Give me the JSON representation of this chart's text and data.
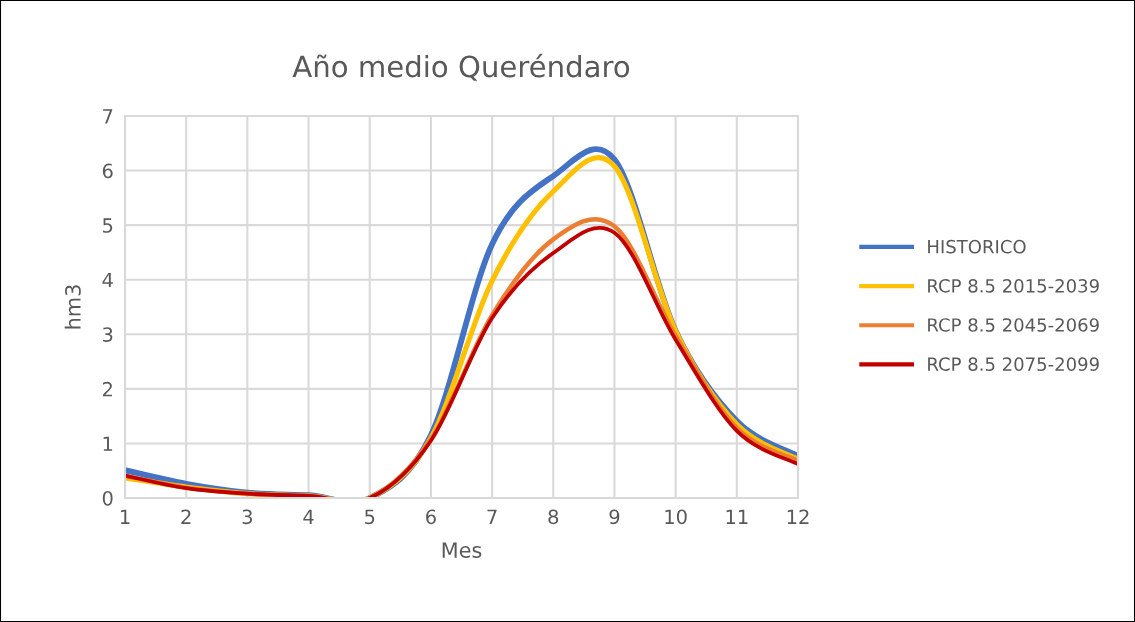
{
  "chart_data": {
    "type": "line",
    "title": "Año medio Queréndaro",
    "xlabel": "Mes",
    "ylabel": "hm3",
    "x": [
      1,
      2,
      3,
      4,
      5,
      6,
      7,
      8,
      9,
      10,
      11,
      12
    ],
    "xlim": [
      1,
      12
    ],
    "xticks": [
      1,
      2,
      3,
      4,
      5,
      6,
      7,
      8,
      9,
      10,
      11,
      12
    ],
    "ylim": [
      0,
      7
    ],
    "yticks": [
      0,
      1,
      2,
      3,
      4,
      5,
      6,
      7
    ],
    "grid": true,
    "legend": "right",
    "marker": "none",
    "line_style": "solid",
    "series": [
      {
        "name": "HISTORICO",
        "color": "#4472c4",
        "values": [
          0.51,
          0.26,
          0.1,
          0.05,
          0.0,
          1.15,
          4.65,
          5.9,
          6.2,
          3.06,
          1.41,
          0.77
        ]
      },
      {
        "name": "RCP 8.5 2015-2039",
        "color": "#ffc000",
        "values": [
          0.37,
          0.2,
          0.08,
          0.04,
          0.0,
          1.1,
          3.98,
          5.62,
          6.08,
          3.06,
          1.35,
          0.71
        ]
      },
      {
        "name": "RCP 8.5 2045-2069",
        "color": "#ed7d31",
        "values": [
          0.41,
          0.19,
          0.08,
          0.04,
          0.0,
          1.07,
          3.35,
          4.74,
          4.98,
          2.97,
          1.28,
          0.68
        ]
      },
      {
        "name": "RCP 8.5 2075-2099",
        "color": "#c00000",
        "values": [
          0.41,
          0.18,
          0.08,
          0.04,
          0.0,
          1.05,
          3.3,
          4.49,
          4.86,
          2.9,
          1.23,
          0.62
        ]
      }
    ]
  }
}
